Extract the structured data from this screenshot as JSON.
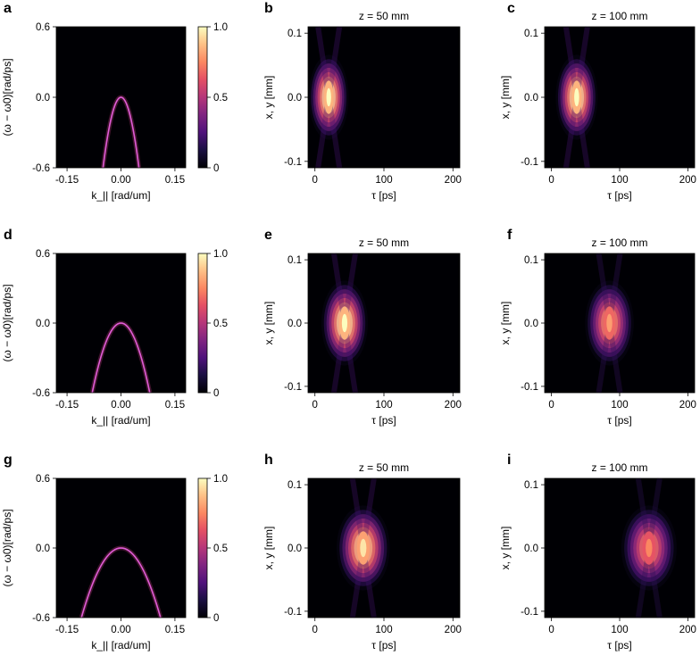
{
  "chart_data": [
    {
      "panel": "a",
      "type": "heatmap",
      "subtype": "spectrum",
      "title": "",
      "xlabel": "k_|| [rad/um]",
      "ylabel": "(ω − ω0)[rad/ps]",
      "xlim": [
        -0.18,
        0.18
      ],
      "ylim": [
        -0.6,
        0.6
      ],
      "xticks": [
        "-0.15",
        "0.00",
        "0.15"
      ],
      "yticks": [
        "0.6",
        "0.0",
        "-0.6"
      ],
      "colorbar": {
        "range": [
          0,
          1
        ],
        "ticks": [
          "1.0",
          "0.5",
          "0"
        ],
        "colormap": "magma"
      },
      "curve": {
        "apex_k": 0.0,
        "apex_omega": 0.0,
        "omega_at_k_0_05": -0.6
      }
    },
    {
      "panel": "b",
      "type": "heatmap",
      "subtype": "pulse",
      "title": "z = 50 mm",
      "xlabel": "τ [ps]",
      "ylabel": "x, y [mm]",
      "xlim": [
        -10,
        210
      ],
      "ylim": [
        -0.11,
        0.11
      ],
      "xticks": [
        "0",
        "100",
        "200"
      ],
      "yticks": [
        "0.1",
        "0.0",
        "-0.1"
      ],
      "peak": {
        "tau": 20,
        "xy": 0.0,
        "intensity": 1.0
      }
    },
    {
      "panel": "c",
      "type": "heatmap",
      "subtype": "pulse",
      "title": "z = 100 mm",
      "xlabel": "τ [ps]",
      "ylabel": "x, y [mm]",
      "xlim": [
        -10,
        210
      ],
      "ylim": [
        -0.11,
        0.11
      ],
      "xticks": [
        "0",
        "100",
        "200"
      ],
      "yticks": [
        "0.1",
        "0.0",
        "-0.1"
      ],
      "peak": {
        "tau": 37,
        "xy": 0.0,
        "intensity": 1.0
      }
    },
    {
      "panel": "d",
      "type": "heatmap",
      "subtype": "spectrum",
      "title": "",
      "xlabel": "k_|| [rad/um]",
      "ylabel": "(ω − ω0)[rad/ps]",
      "xlim": [
        -0.18,
        0.18
      ],
      "ylim": [
        -0.6,
        0.6
      ],
      "xticks": [
        "-0.15",
        "0.00",
        "0.15"
      ],
      "yticks": [
        "0.6",
        "0.0",
        "-0.6"
      ],
      "colorbar": {
        "range": [
          0,
          1
        ],
        "ticks": [
          "1.0",
          "0.5",
          "0"
        ],
        "colormap": "magma"
      },
      "curve": {
        "apex_k": 0.0,
        "apex_omega": 0.0,
        "omega_at_k_0_08": -0.6
      }
    },
    {
      "panel": "e",
      "type": "heatmap",
      "subtype": "pulse",
      "title": "z = 50 mm",
      "xlabel": "τ [ps]",
      "ylabel": "x, y [mm]",
      "xlim": [
        -10,
        210
      ],
      "ylim": [
        -0.11,
        0.11
      ],
      "xticks": [
        "0",
        "100",
        "200"
      ],
      "yticks": [
        "0.1",
        "0.0",
        "-0.1"
      ],
      "peak": {
        "tau": 43,
        "xy": 0.0,
        "intensity": 1.0
      }
    },
    {
      "panel": "f",
      "type": "heatmap",
      "subtype": "pulse",
      "title": "z = 100 mm",
      "xlabel": "τ [ps]",
      "ylabel": "x, y [mm]",
      "xlim": [
        -10,
        210
      ],
      "ylim": [
        -0.11,
        0.11
      ],
      "xticks": [
        "0",
        "100",
        "200"
      ],
      "yticks": [
        "0.1",
        "0.0",
        "-0.1"
      ],
      "peak": {
        "tau": 85,
        "xy": 0.0,
        "intensity": 0.8
      }
    },
    {
      "panel": "g",
      "type": "heatmap",
      "subtype": "spectrum",
      "title": "",
      "xlabel": "k_|| [rad/um]",
      "ylabel": "(ω − ω0)[rad/ps]",
      "xlim": [
        -0.18,
        0.18
      ],
      "ylim": [
        -0.6,
        0.6
      ],
      "xticks": [
        "-0.15",
        "0.00",
        "0.15"
      ],
      "yticks": [
        "0.6",
        "0.0",
        "-0.6"
      ],
      "colorbar": {
        "range": [
          0,
          1
        ],
        "ticks": [
          "1.0",
          "0.5",
          "0"
        ],
        "colormap": "magma"
      },
      "curve": {
        "apex_k": 0.0,
        "apex_omega": 0.0,
        "omega_at_k_0_11": -0.6
      }
    },
    {
      "panel": "h",
      "type": "heatmap",
      "subtype": "pulse",
      "title": "z = 50 mm",
      "xlabel": "τ [ps]",
      "ylabel": "x, y [mm]",
      "xlim": [
        -10,
        210
      ],
      "ylim": [
        -0.11,
        0.11
      ],
      "xticks": [
        "0",
        "100",
        "200"
      ],
      "yticks": [
        "0.1",
        "0.0",
        "-0.1"
      ],
      "peak": {
        "tau": 70,
        "xy": 0.0,
        "intensity": 0.95
      }
    },
    {
      "panel": "i",
      "type": "heatmap",
      "subtype": "pulse",
      "title": "z = 100 mm",
      "xlabel": "τ [ps]",
      "ylabel": "x, y [mm]",
      "xlim": [
        -10,
        210
      ],
      "ylim": [
        -0.11,
        0.11
      ],
      "xticks": [
        "0",
        "100",
        "200"
      ],
      "yticks": [
        "0.1",
        "0.0",
        "-0.1"
      ],
      "peak": {
        "tau": 143,
        "xy": 0.0,
        "intensity": 0.75
      }
    }
  ]
}
